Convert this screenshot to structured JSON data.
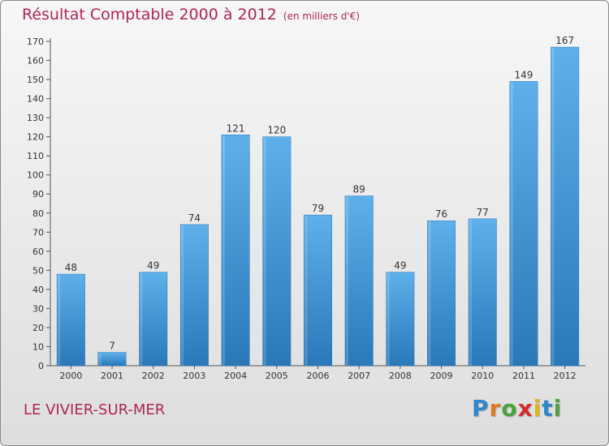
{
  "header": {
    "title": "Résultat Comptable 2000 à 2012",
    "subtitle": "(en milliers d'€)"
  },
  "footer": {
    "commune": "LE VIVIER-SUR-MER",
    "logo_letters": [
      {
        "char": "P",
        "color": "#2f86c8"
      },
      {
        "char": "r",
        "color": "#e07b1c"
      },
      {
        "char": "o",
        "color": "#4aa33a"
      },
      {
        "char": "x",
        "color": "#d62a2a"
      },
      {
        "char": "i",
        "color": "#e0b51c"
      },
      {
        "char": "t",
        "color": "#2f86c8"
      },
      {
        "char": "i",
        "color": "#4aa33a"
      }
    ]
  },
  "chart_data": {
    "type": "bar",
    "title": "Résultat Comptable 2000 à 2012",
    "subtitle": "(en milliers d'€)",
    "categories": [
      "2000",
      "2001",
      "2002",
      "2003",
      "2004",
      "2005",
      "2006",
      "2007",
      "2008",
      "2009",
      "2010",
      "2011",
      "2012"
    ],
    "values": [
      48,
      7,
      49,
      74,
      121,
      120,
      79,
      89,
      49,
      76,
      77,
      149,
      167
    ],
    "ylim": [
      0,
      170
    ],
    "yticks": [
      0,
      10,
      20,
      30,
      40,
      50,
      60,
      70,
      80,
      90,
      100,
      110,
      120,
      130,
      140,
      150,
      160,
      170
    ],
    "grid": false,
    "bar_color": "#3d95d6",
    "bar_color_light": "#5fb0ea",
    "bar_color_dark": "#2a78b8"
  }
}
